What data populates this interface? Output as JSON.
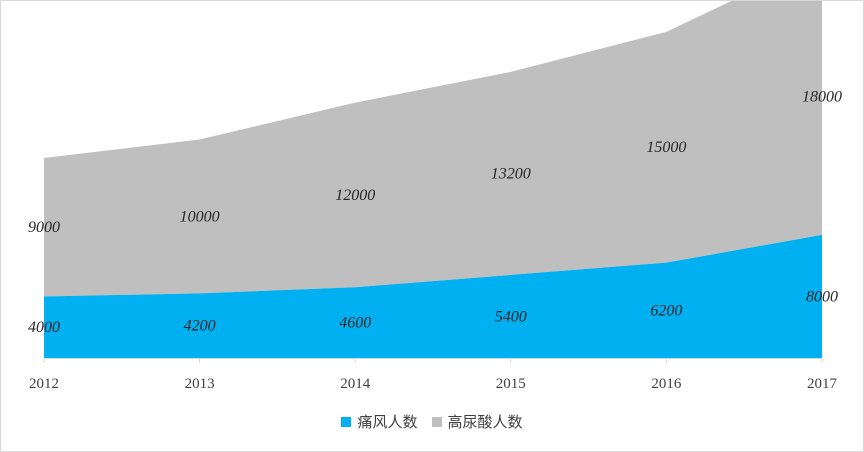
{
  "chart_data": {
    "type": "area",
    "stacked": true,
    "title": "",
    "xlabel": "",
    "ylabel": "",
    "categories": [
      "2012",
      "2013",
      "2014",
      "2015",
      "2016",
      "2017"
    ],
    "series": [
      {
        "name": "痛风人数",
        "values": [
          4000,
          4200,
          4600,
          5400,
          6200,
          8000
        ],
        "color": "#00b0f0"
      },
      {
        "name": "高尿酸人数",
        "values": [
          9000,
          10000,
          12000,
          13200,
          15000,
          18000
        ],
        "color": "#bfbfbf"
      }
    ],
    "ylim": [
      0,
      26000
    ],
    "grid": false,
    "legend_position": "bottom",
    "data_labels": true
  }
}
